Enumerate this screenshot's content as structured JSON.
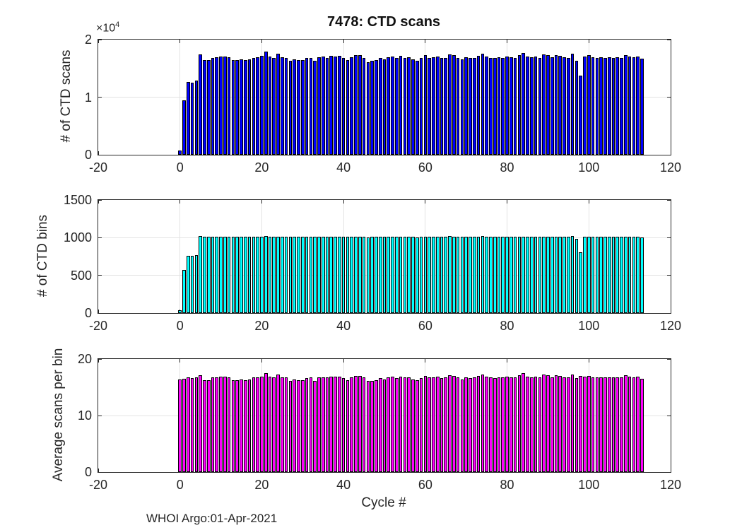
{
  "figure": {
    "title": "7478: CTD scans",
    "xlabel": "Cycle #",
    "footer": "WHOI Argo:01-Apr-2021",
    "exponent_base": "×10",
    "exponent_power": "4"
  },
  "colors": {
    "background": "#ffffff",
    "axis": "#262626",
    "grid": "#e3e3e3",
    "bar_edge": "#000000",
    "scans_bar": "#0000ff",
    "bins_bar": "#00ffff",
    "avg_bar": "#ff00ff"
  },
  "chart_data": [
    {
      "type": "bar",
      "name": "ctd-scans",
      "ylabel": "# of CTD scans",
      "y_exponent_label": "×10⁴",
      "xlim": [
        -20,
        120
      ],
      "ylim": [
        0,
        20000
      ],
      "xticks": [
        -20,
        0,
        20,
        40,
        60,
        80,
        100,
        120
      ],
      "xtick_labels": [
        "-20",
        "0",
        "20",
        "40",
        "60",
        "80",
        "100",
        "120"
      ],
      "yticks": [
        0,
        10000,
        20000
      ],
      "ytick_labels": [
        "0",
        "1",
        "2"
      ],
      "grid": true,
      "bar_color": "#0000ff",
      "x_start": 0,
      "values": [
        690,
        9430,
        12680,
        12560,
        12840,
        17480,
        16460,
        16500,
        16870,
        16950,
        17070,
        17070,
        16990,
        16420,
        16500,
        16540,
        16500,
        16540,
        16870,
        16990,
        17200,
        17890,
        17050,
        16870,
        17500,
        16950,
        16870,
        16300,
        16540,
        16420,
        16460,
        16750,
        16870,
        16300,
        16950,
        17070,
        16870,
        17160,
        17070,
        17200,
        16750,
        16460,
        16950,
        17280,
        17280,
        16870,
        16100,
        16300,
        16420,
        16750,
        16540,
        16950,
        17070,
        16750,
        17160,
        16870,
        16950,
        16540,
        16300,
        16750,
        17280,
        16870,
        16950,
        17070,
        16750,
        16870,
        17440,
        17300,
        16870,
        16540,
        16950,
        16750,
        16870,
        17160,
        17600,
        17050,
        16870,
        16750,
        16950,
        16870,
        17070,
        16950,
        16870,
        17240,
        17680,
        17050,
        16950,
        17070,
        16870,
        17440,
        17240,
        16950,
        17360,
        17160,
        16950,
        16870,
        17560,
        16300,
        13790,
        17050,
        17240,
        16950,
        16870,
        16950,
        16870,
        16950,
        16870,
        16950,
        16870,
        17240,
        17070,
        16950,
        17050,
        16630
      ]
    },
    {
      "type": "bar",
      "name": "ctd-bins",
      "ylabel": "# of CTD bins",
      "xlim": [
        -20,
        120
      ],
      "ylim": [
        0,
        1500
      ],
      "xticks": [
        -20,
        0,
        20,
        40,
        60,
        80,
        100,
        120
      ],
      "xtick_labels": [
        "-20",
        "0",
        "20",
        "40",
        "60",
        "80",
        "100",
        "120"
      ],
      "yticks": [
        0,
        500,
        1000,
        1500
      ],
      "ytick_labels": [
        "0",
        "500",
        "1000",
        "1500"
      ],
      "grid": true,
      "bar_color": "#00ffff",
      "x_start": 0,
      "values": [
        42,
        570,
        760,
        755,
        765,
        1025,
        1010,
        1010,
        1010,
        1010,
        1010,
        1010,
        1010,
        1010,
        1010,
        1010,
        1010,
        1010,
        1010,
        1010,
        1015,
        1020,
        1010,
        1010,
        1015,
        1010,
        1010,
        1010,
        1010,
        1010,
        1010,
        1010,
        1010,
        1010,
        1010,
        1015,
        1010,
        1015,
        1010,
        1015,
        1010,
        1010,
        1010,
        1015,
        1015,
        1010,
        1000,
        1010,
        1010,
        1010,
        1010,
        1010,
        1010,
        1010,
        1015,
        1010,
        1010,
        1010,
        1005,
        1010,
        1015,
        1010,
        1010,
        1010,
        1010,
        1010,
        1020,
        1015,
        1010,
        1010,
        1010,
        1010,
        1010,
        1010,
        1020,
        1010,
        1010,
        1010,
        1010,
        1010,
        1010,
        1010,
        1010,
        1010,
        1010,
        1010,
        1010,
        1010,
        1010,
        1015,
        1010,
        1010,
        1015,
        1010,
        1010,
        1010,
        1020,
        980,
        810,
        1010,
        1015,
        1010,
        1010,
        1010,
        1010,
        1010,
        1010,
        1010,
        1010,
        1010,
        1010,
        1010,
        1010,
        1005
      ]
    },
    {
      "type": "bar",
      "name": "avg-scans-per-bin",
      "ylabel": "Average scans per bin",
      "xlabel": "Cycle #",
      "xlim": [
        -20,
        120
      ],
      "ylim": [
        0,
        20
      ],
      "xticks": [
        -20,
        0,
        20,
        40,
        60,
        80,
        100,
        120
      ],
      "xtick_labels": [
        "-20",
        "0",
        "20",
        "40",
        "60",
        "80",
        "100",
        "120"
      ],
      "yticks": [
        0,
        10,
        20
      ],
      "ytick_labels": [
        "0",
        "10",
        "20"
      ],
      "grid": true,
      "bar_color": "#ff00ff",
      "x_start": 0,
      "values": [
        16.4,
        16.5,
        16.7,
        16.6,
        16.8,
        17.1,
        16.3,
        16.3,
        16.7,
        16.8,
        16.9,
        16.9,
        16.8,
        16.3,
        16.3,
        16.4,
        16.3,
        16.4,
        16.7,
        16.8,
        16.9,
        17.5,
        16.9,
        16.7,
        17.2,
        16.8,
        16.7,
        16.1,
        16.4,
        16.3,
        16.3,
        16.6,
        16.7,
        16.1,
        16.8,
        16.8,
        16.7,
        16.9,
        16.9,
        16.9,
        16.6,
        16.3,
        16.8,
        17.0,
        17.0,
        16.7,
        16.1,
        16.1,
        16.3,
        16.6,
        16.4,
        16.8,
        16.9,
        16.6,
        16.9,
        16.7,
        16.8,
        16.4,
        16.2,
        16.6,
        17.0,
        16.7,
        16.8,
        16.9,
        16.6,
        16.7,
        17.1,
        17.0,
        16.7,
        16.4,
        16.8,
        16.6,
        16.7,
        17.0,
        17.3,
        16.9,
        16.7,
        16.6,
        16.8,
        16.7,
        16.9,
        16.8,
        16.7,
        17.1,
        17.5,
        16.9,
        16.8,
        16.9,
        16.7,
        17.2,
        17.1,
        16.8,
        17.1,
        17.0,
        16.8,
        16.7,
        17.2,
        16.6,
        17.0,
        16.9,
        17.0,
        16.8,
        16.7,
        16.8,
        16.7,
        16.8,
        16.7,
        16.8,
        16.7,
        17.1,
        16.9,
        16.8,
        16.9,
        16.5
      ]
    }
  ]
}
